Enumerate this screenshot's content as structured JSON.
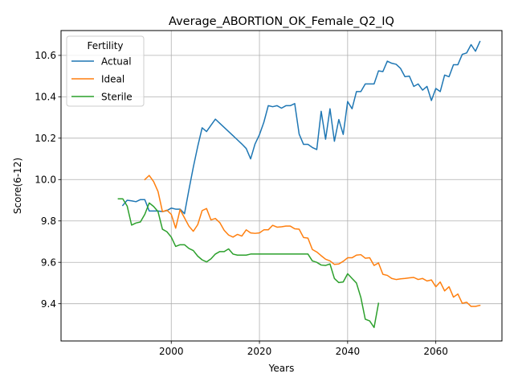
{
  "chart_data": {
    "type": "line",
    "title": "Average_ABORTION_OK_Female_Q2_IQ",
    "xlabel": "Years",
    "ylabel": "Score(6-12)",
    "xlim": [
      1975,
      2075
    ],
    "ylim": [
      9.22,
      10.72
    ],
    "xticks": [
      2000,
      2020,
      2040,
      2060
    ],
    "yticks": [
      9.4,
      9.6,
      9.8,
      10.0,
      10.2,
      10.4,
      10.6
    ],
    "grid": true,
    "legend": {
      "title": "Fertility",
      "placement": "top-left"
    },
    "series": [
      {
        "name": "Actual",
        "color": "#1f77b4",
        "points": [
          [
            1989,
            9.875
          ],
          [
            1990,
            9.9
          ],
          [
            1991,
            9.897
          ],
          [
            1992,
            9.893
          ],
          [
            1993,
            9.903
          ],
          [
            1994,
            9.903
          ],
          [
            1995,
            9.848
          ],
          [
            1996,
            9.848
          ],
          [
            1997,
            9.848
          ],
          [
            1998,
            9.845
          ],
          [
            1999,
            9.85
          ],
          [
            2000,
            9.862
          ],
          [
            2001,
            9.857
          ],
          [
            2002,
            9.857
          ],
          [
            2003,
            9.835
          ],
          [
            2004,
            9.95
          ],
          [
            2005,
            10.06
          ],
          [
            2006,
            10.16
          ],
          [
            2007,
            10.25
          ],
          [
            2008,
            10.232
          ],
          [
            2009,
            10.262
          ],
          [
            2010,
            10.292
          ],
          [
            2011,
            10.272
          ],
          [
            2012,
            10.252
          ],
          [
            2013,
            10.232
          ],
          [
            2014,
            10.212
          ],
          [
            2015,
            10.192
          ],
          [
            2016,
            10.172
          ],
          [
            2017,
            10.15
          ],
          [
            2018,
            10.1
          ],
          [
            2019,
            10.172
          ],
          [
            2020,
            10.217
          ],
          [
            2021,
            10.277
          ],
          [
            2022,
            10.357
          ],
          [
            2023,
            10.352
          ],
          [
            2024,
            10.357
          ],
          [
            2025,
            10.345
          ],
          [
            2026,
            10.357
          ],
          [
            2027,
            10.357
          ],
          [
            2028,
            10.367
          ],
          [
            2029,
            10.22
          ],
          [
            2030,
            10.17
          ],
          [
            2031,
            10.17
          ],
          [
            2032,
            10.155
          ],
          [
            2033,
            10.145
          ],
          [
            2034,
            10.33
          ],
          [
            2035,
            10.195
          ],
          [
            2036,
            10.342
          ],
          [
            2037,
            10.185
          ],
          [
            2038,
            10.29
          ],
          [
            2039,
            10.218
          ],
          [
            2040,
            10.377
          ],
          [
            2041,
            10.342
          ],
          [
            2042,
            10.425
          ],
          [
            2043,
            10.425
          ],
          [
            2044,
            10.462
          ],
          [
            2045,
            10.462
          ],
          [
            2046,
            10.462
          ],
          [
            2047,
            10.525
          ],
          [
            2048,
            10.522
          ],
          [
            2049,
            10.572
          ],
          [
            2050,
            10.562
          ],
          [
            2051,
            10.557
          ],
          [
            2052,
            10.537
          ],
          [
            2053,
            10.497
          ],
          [
            2054,
            10.5
          ],
          [
            2055,
            10.45
          ],
          [
            2056,
            10.462
          ],
          [
            2057,
            10.432
          ],
          [
            2058,
            10.45
          ],
          [
            2059,
            10.382
          ],
          [
            2060,
            10.44
          ],
          [
            2061,
            10.425
          ],
          [
            2062,
            10.505
          ],
          [
            2063,
            10.497
          ],
          [
            2064,
            10.555
          ],
          [
            2065,
            10.555
          ],
          [
            2066,
            10.605
          ],
          [
            2067,
            10.612
          ],
          [
            2068,
            10.652
          ],
          [
            2069,
            10.62
          ],
          [
            2070,
            10.667
          ]
        ]
      },
      {
        "name": "Ideal",
        "color": "#ff7f0e",
        "points": [
          [
            1994,
            10.0
          ],
          [
            1995,
            10.02
          ],
          [
            1996,
            9.99
          ],
          [
            1997,
            9.942
          ],
          [
            1998,
            9.845
          ],
          [
            1999,
            9.852
          ],
          [
            2000,
            9.832
          ],
          [
            2001,
            9.765
          ],
          [
            2002,
            9.855
          ],
          [
            2003,
            9.815
          ],
          [
            2004,
            9.775
          ],
          [
            2005,
            9.75
          ],
          [
            2006,
            9.782
          ],
          [
            2007,
            9.85
          ],
          [
            2008,
            9.86
          ],
          [
            2009,
            9.805
          ],
          [
            2010,
            9.812
          ],
          [
            2011,
            9.792
          ],
          [
            2012,
            9.755
          ],
          [
            2013,
            9.732
          ],
          [
            2014,
            9.722
          ],
          [
            2015,
            9.735
          ],
          [
            2016,
            9.727
          ],
          [
            2017,
            9.757
          ],
          [
            2018,
            9.742
          ],
          [
            2019,
            9.74
          ],
          [
            2020,
            9.742
          ],
          [
            2021,
            9.757
          ],
          [
            2022,
            9.757
          ],
          [
            2023,
            9.779
          ],
          [
            2024,
            9.77
          ],
          [
            2025,
            9.772
          ],
          [
            2026,
            9.775
          ],
          [
            2027,
            9.775
          ],
          [
            2028,
            9.762
          ],
          [
            2029,
            9.76
          ],
          [
            2030,
            9.72
          ],
          [
            2031,
            9.717
          ],
          [
            2032,
            9.662
          ],
          [
            2033,
            9.65
          ],
          [
            2034,
            9.632
          ],
          [
            2035,
            9.615
          ],
          [
            2036,
            9.607
          ],
          [
            2037,
            9.59
          ],
          [
            2038,
            9.592
          ],
          [
            2039,
            9.605
          ],
          [
            2040,
            9.622
          ],
          [
            2041,
            9.622
          ],
          [
            2042,
            9.635
          ],
          [
            2043,
            9.637
          ],
          [
            2044,
            9.62
          ],
          [
            2045,
            9.622
          ],
          [
            2046,
            9.585
          ],
          [
            2047,
            9.597
          ],
          [
            2048,
            9.542
          ],
          [
            2049,
            9.537
          ],
          [
            2050,
            9.522
          ],
          [
            2051,
            9.517
          ],
          [
            2052,
            9.52
          ],
          [
            2053,
            9.522
          ],
          [
            2054,
            9.525
          ],
          [
            2055,
            9.527
          ],
          [
            2056,
            9.517
          ],
          [
            2057,
            9.522
          ],
          [
            2058,
            9.51
          ],
          [
            2059,
            9.515
          ],
          [
            2060,
            9.482
          ],
          [
            2061,
            9.505
          ],
          [
            2062,
            9.462
          ],
          [
            2063,
            9.482
          ],
          [
            2064,
            9.432
          ],
          [
            2065,
            9.447
          ],
          [
            2066,
            9.402
          ],
          [
            2067,
            9.407
          ],
          [
            2068,
            9.387
          ],
          [
            2069,
            9.387
          ],
          [
            2070,
            9.392
          ]
        ]
      },
      {
        "name": "Sterile",
        "color": "#2ca02c",
        "points": [
          [
            1988,
            9.907
          ],
          [
            1989,
            9.907
          ],
          [
            1990,
            9.872
          ],
          [
            1991,
            9.78
          ],
          [
            1992,
            9.79
          ],
          [
            1993,
            9.795
          ],
          [
            1994,
            9.832
          ],
          [
            1995,
            9.887
          ],
          [
            1996,
            9.87
          ],
          [
            1997,
            9.845
          ],
          [
            1998,
            9.76
          ],
          [
            1999,
            9.748
          ],
          [
            2000,
            9.722
          ],
          [
            2001,
            9.677
          ],
          [
            2002,
            9.685
          ],
          [
            2003,
            9.685
          ],
          [
            2004,
            9.667
          ],
          [
            2005,
            9.657
          ],
          [
            2006,
            9.63
          ],
          [
            2007,
            9.612
          ],
          [
            2008,
            9.602
          ],
          [
            2009,
            9.617
          ],
          [
            2010,
            9.64
          ],
          [
            2011,
            9.652
          ],
          [
            2012,
            9.652
          ],
          [
            2013,
            9.665
          ],
          [
            2014,
            9.64
          ],
          [
            2015,
            9.635
          ],
          [
            2016,
            9.635
          ],
          [
            2017,
            9.635
          ],
          [
            2018,
            9.64
          ],
          [
            2019,
            9.64
          ],
          [
            2020,
            9.64
          ],
          [
            2021,
            9.64
          ],
          [
            2022,
            9.64
          ],
          [
            2023,
            9.64
          ],
          [
            2024,
            9.64
          ],
          [
            2025,
            9.64
          ],
          [
            2026,
            9.64
          ],
          [
            2027,
            9.64
          ],
          [
            2028,
            9.64
          ],
          [
            2029,
            9.64
          ],
          [
            2030,
            9.64
          ],
          [
            2031,
            9.64
          ],
          [
            2032,
            9.607
          ],
          [
            2033,
            9.6
          ],
          [
            2034,
            9.587
          ],
          [
            2035,
            9.585
          ],
          [
            2036,
            9.592
          ],
          [
            2037,
            9.522
          ],
          [
            2038,
            9.502
          ],
          [
            2039,
            9.505
          ],
          [
            2040,
            9.545
          ],
          [
            2041,
            9.522
          ],
          [
            2042,
            9.5
          ],
          [
            2043,
            9.43
          ],
          [
            2044,
            9.325
          ],
          [
            2045,
            9.317
          ],
          [
            2046,
            9.285
          ],
          [
            2047,
            9.402
          ]
        ]
      }
    ]
  }
}
